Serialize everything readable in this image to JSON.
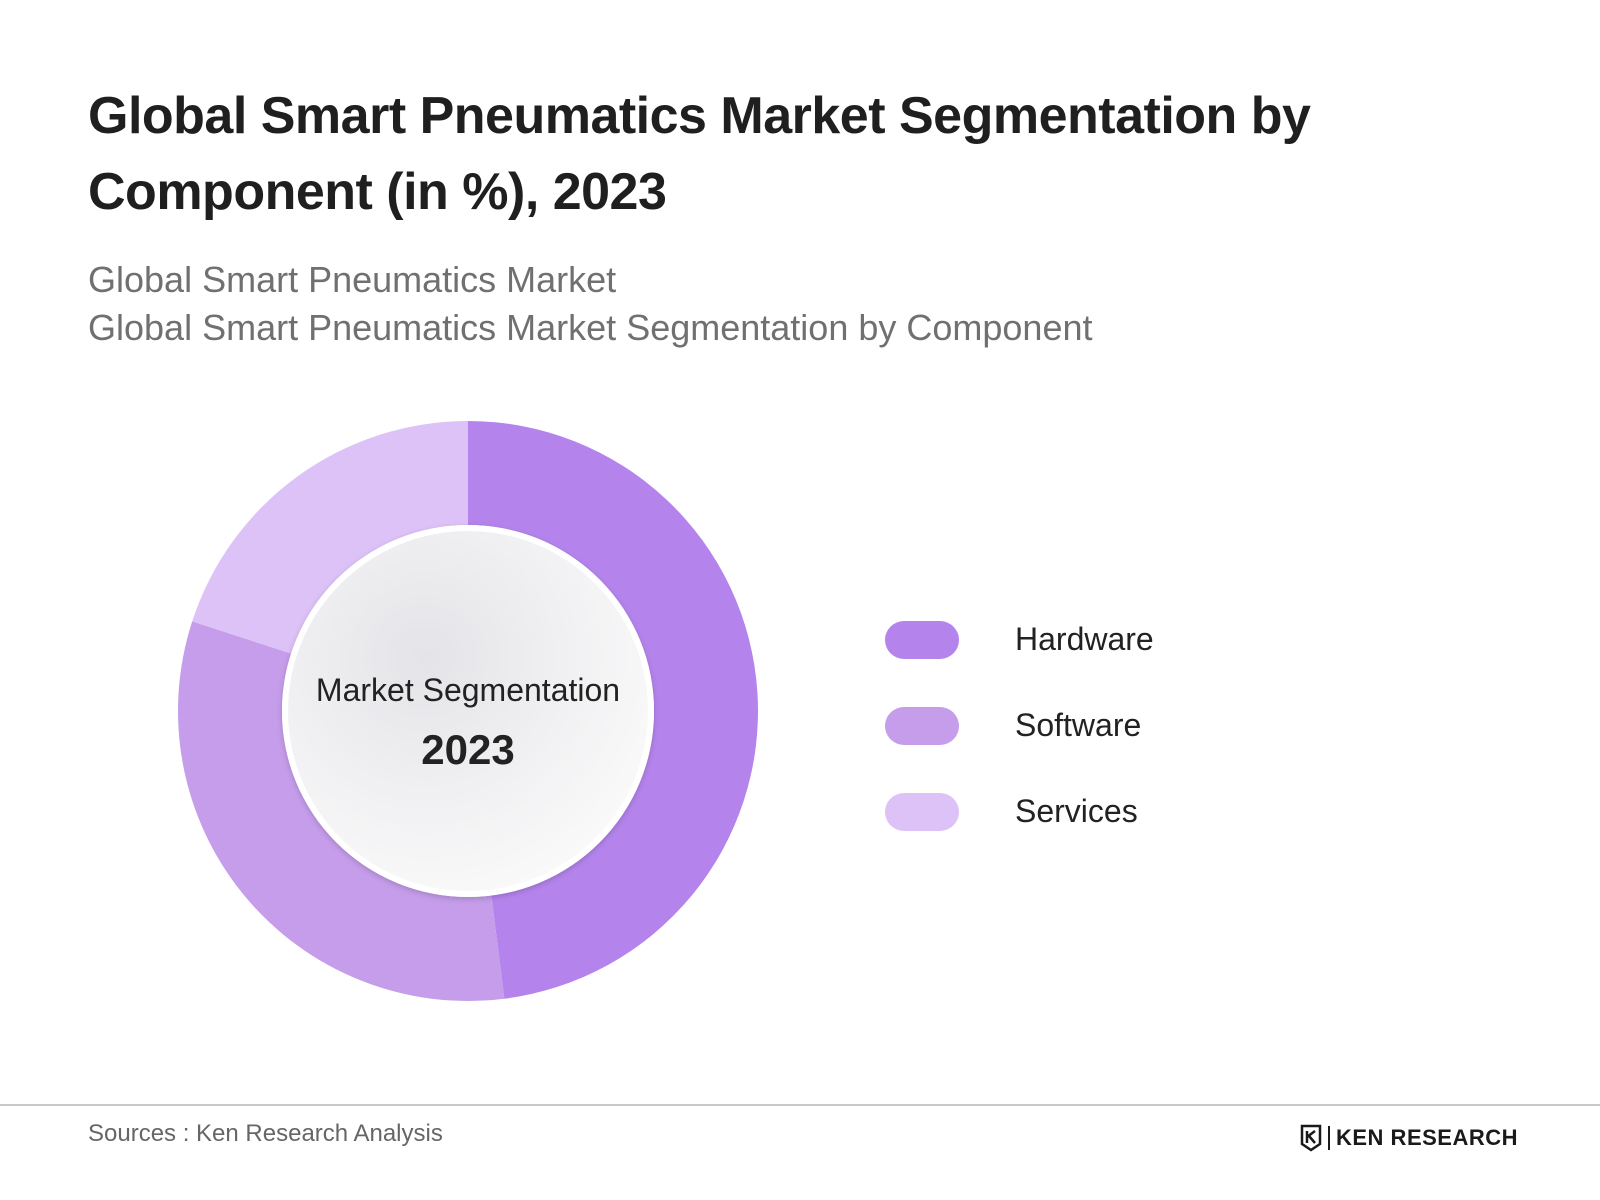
{
  "title": "Global Smart Pneumatics Market Segmentation by Component (in %), 2023",
  "subtitle_line1": "Global Smart Pneumatics Market",
  "subtitle_line2": "Global Smart Pneumatics Market Segmentation by Component",
  "center_label": {
    "line1": "Market Segmentation",
    "line2": "2023"
  },
  "footer": {
    "source": "Sources : Ken Research Analysis",
    "brand": "KEN RESEARCH",
    "brand_icon": "ken-research-logo-icon"
  },
  "chart_data": {
    "type": "pie",
    "variant": "donut",
    "categories": [
      "Hardware",
      "Software",
      "Services"
    ],
    "values": [
      48,
      32,
      20
    ],
    "colors": [
      "#b484ec",
      "#c59deb",
      "#dcc2f6"
    ],
    "legend_position": "right"
  }
}
